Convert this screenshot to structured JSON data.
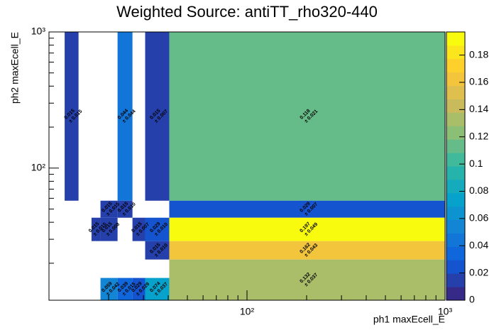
{
  "chart_data": {
    "type": "heatmap",
    "title": "Weighted Source: antiTT_rho320-440",
    "x_label": "ph1 maxEcell_E",
    "y_label": "ph2 maxEcell_E",
    "xscale": "log",
    "yscale": "log",
    "xlim": [
      10,
      1000
    ],
    "ylim": [
      10.7,
      1000
    ],
    "xticks": [
      {
        "value": 100,
        "label": "10²"
      },
      {
        "value": 1000,
        "label": "10³"
      }
    ],
    "yticks": [
      {
        "value": 100,
        "label": "10²"
      },
      {
        "value": 1000,
        "label": "10³"
      }
    ],
    "xminorticks": [
      20,
      30,
      40,
      50,
      60,
      70,
      80,
      90,
      200,
      300,
      400,
      500,
      600,
      700,
      800,
      900
    ],
    "yminorticks": [
      20,
      30,
      40,
      50,
      60,
      70,
      80,
      90,
      200,
      300,
      400,
      500,
      600,
      700,
      800,
      900
    ],
    "zlim": [
      0,
      0.197
    ],
    "zticks": [
      0,
      0.02,
      0.04,
      0.06,
      0.08,
      0.1,
      0.12,
      0.14,
      0.16,
      0.18
    ],
    "levels": 20,
    "palette": [
      "#352a87",
      "#0f5cdd",
      "#1481d6",
      "#06a4ca",
      "#2eb7a4",
      "#87bf77",
      "#d1bb59",
      "#fec832",
      "#f9fb0e"
    ],
    "cells": [
      {
        "x": [
          12,
          14.1
        ],
        "y": [
          57.6,
          1000
        ],
        "value": 0.015,
        "error": 0.015,
        "error_label": "± 0.015"
      },
      {
        "x": [
          22.2,
          26.4
        ],
        "y": [
          57.6,
          1000
        ],
        "value": 0.044,
        "error": 0.044,
        "error_label": "± 0.044"
      },
      {
        "x": [
          30.6,
          40.5
        ],
        "y": [
          57.6,
          1000
        ],
        "value": 0.015,
        "error": 0.007,
        "error_label": "± 0.007"
      },
      {
        "x": [
          40.5,
          1000
        ],
        "y": [
          57.6,
          1000
        ],
        "value": 0.118,
        "error": 0.021,
        "error_label": "± 0.021"
      },
      {
        "x": [
          18.2,
          22.2
        ],
        "y": [
          43.2,
          57.6
        ],
        "value": 0.015,
        "error": 0.015,
        "error_label": "± 0.015"
      },
      {
        "x": [
          22.2,
          26.4
        ],
        "y": [
          43.2,
          57.6
        ],
        "value": 0.015,
        "error": 0.01,
        "error_label": "± 0.010"
      },
      {
        "x": [
          40.5,
          1000
        ],
        "y": [
          43.2,
          57.6
        ],
        "value": 0.029,
        "error": 0.007,
        "error_label": "± 0.007"
      },
      {
        "x": [
          16.4,
          18.2
        ],
        "y": [
          29.1,
          43.2
        ],
        "value": 0.015,
        "error": 0.015,
        "error_label": "± 0.015"
      },
      {
        "x": [
          18.2,
          22.2
        ],
        "y": [
          29.1,
          43.2
        ],
        "value": 0.015,
        "error": 0.008,
        "error_label": "± 0.008"
      },
      {
        "x": [
          26.4,
          30.6
        ],
        "y": [
          29.1,
          43.2
        ],
        "value": 0.015,
        "error": 0.007,
        "error_label": "± 0.007"
      },
      {
        "x": [
          30.6,
          40.5
        ],
        "y": [
          29.1,
          43.2
        ],
        "value": 0.029,
        "error": 0.01,
        "error_label": "± 0.010"
      },
      {
        "x": [
          40.5,
          1000
        ],
        "y": [
          29.1,
          43.2
        ],
        "value": 0.197,
        "error": 0.049,
        "error_label": "± 0.049"
      },
      {
        "x": [
          30.6,
          40.5
        ],
        "y": [
          21.3,
          29.1
        ],
        "value": 0.015,
        "error": 0.01,
        "error_label": "± 0.010"
      },
      {
        "x": [
          40.5,
          1000
        ],
        "y": [
          21.3,
          29.1
        ],
        "value": 0.162,
        "error": 0.043,
        "error_label": "± 0.043"
      },
      {
        "x": [
          40.5,
          1000
        ],
        "y": [
          10.7,
          21.3
        ],
        "value": 0.132,
        "error": 0.037,
        "error_label": "± 0.037"
      },
      {
        "x": [
          18.2,
          22.2
        ],
        "y": [
          10.7,
          15.6
        ],
        "value": 0.059,
        "error": 0.042,
        "error_label": "± 0.042"
      },
      {
        "x": [
          22.2,
          26.4
        ],
        "y": [
          10.7,
          15.6
        ],
        "value": 0.039,
        "error": 0.015,
        "error_label": "± 0.015"
      },
      {
        "x": [
          26.4,
          30.6
        ],
        "y": [
          10.7,
          15.6
        ],
        "value": 0.029,
        "error": 0.029,
        "error_label": "± 0.029"
      },
      {
        "x": [
          30.6,
          40.5
        ],
        "y": [
          10.7,
          15.6
        ],
        "value": 0.074,
        "error": 0.037,
        "error_label": "± 0.037"
      }
    ]
  }
}
